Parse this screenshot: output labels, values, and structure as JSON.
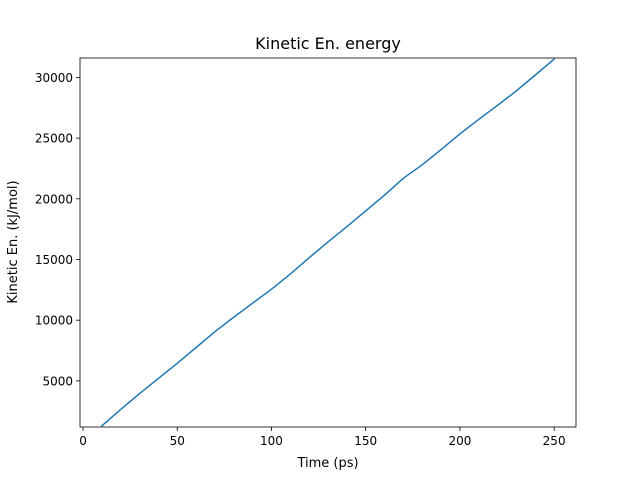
{
  "chart_data": {
    "type": "line",
    "title": "Kinetic En. energy",
    "xlabel": "Time (ps)",
    "ylabel": "Kinetic En. (kJ/mol)",
    "xlim": [
      -1.6,
      261.6
    ],
    "ylim": [
      1200,
      31600
    ],
    "xticks": [
      0,
      50,
      100,
      150,
      200,
      250
    ],
    "yticks": [
      5000,
      10000,
      15000,
      20000,
      25000,
      30000
    ],
    "grid": false,
    "series": [
      {
        "color": "#1f77b4",
        "x": [
          10,
          20,
          30,
          40,
          50,
          60,
          70,
          80,
          90,
          100,
          110,
          120,
          130,
          140,
          150,
          160,
          170,
          180,
          190,
          200,
          210,
          220,
          230,
          240,
          250
        ],
        "y": [
          1300,
          2650,
          3950,
          5200,
          6450,
          7750,
          9050,
          10250,
          11400,
          12550,
          13800,
          15150,
          16450,
          17700,
          19000,
          20300,
          21700,
          22800,
          24050,
          25350,
          26550,
          27700,
          28900,
          30200,
          31500
        ]
      }
    ]
  }
}
